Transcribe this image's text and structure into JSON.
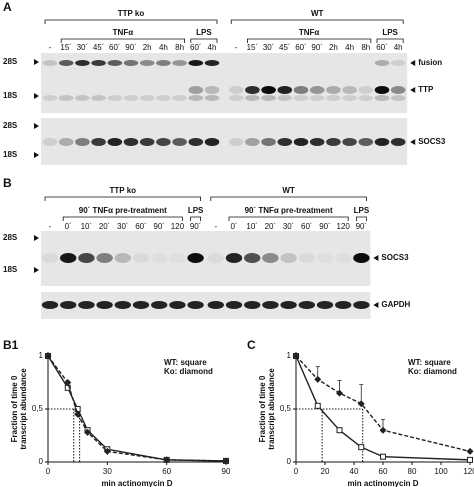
{
  "panel_a": {
    "label": "A",
    "groups": [
      {
        "name": "TTP ko",
        "lanes": [
          "-",
          "15´",
          "30´",
          "45´",
          "60´",
          "90´",
          "2h",
          "4h",
          "8h",
          "60´",
          "4h"
        ],
        "subgroups": [
          "TNFα",
          "LPS"
        ]
      },
      {
        "name": "WT",
        "lanes": [
          "-",
          "15´",
          "30´",
          "45´",
          "60´",
          "90´",
          "2h",
          "4h",
          "8h",
          "60´",
          "4h"
        ],
        "subgroups": [
          "TNFα",
          "LPS"
        ]
      }
    ],
    "markers": [
      "28S",
      "18S",
      "28S",
      "18S"
    ],
    "bands": [
      "fusion",
      "TTP",
      "SOCS3"
    ]
  },
  "panel_b": {
    "label": "B",
    "groups": [
      {
        "name": "TTP ko",
        "lanes": [
          "-",
          "0´",
          "10´",
          "20´",
          "30´",
          "60´",
          "90´",
          "120",
          "90´"
        ],
        "subgroups": [
          "90´ TNFα pre-treatment",
          "LPS"
        ]
      },
      {
        "name": "WT",
        "lanes": [
          "-",
          "0´",
          "10´",
          "20´",
          "30´",
          "60´",
          "90´",
          "120",
          "90´"
        ],
        "subgroups": [
          "90´ TNFα pre-treatment",
          "LPS"
        ]
      }
    ],
    "markers": [
      "28S",
      "18S"
    ],
    "bands": [
      "SOCS3",
      "GAPDH"
    ]
  },
  "chart_data": [
    {
      "type": "line",
      "title": "B1",
      "x_label": "min actinomycin D",
      "y_label": [
        "Fraction of time 0",
        "transcript abundance"
      ],
      "xlim": [
        0,
        90
      ],
      "xticks": [
        0,
        30,
        60,
        90
      ],
      "ylim": [
        0,
        1
      ],
      "yticks": [
        0,
        {
          "value": 0.5,
          "label": "0,5"
        },
        1
      ],
      "reference_lines": {
        "y": 0.5,
        "x": [
          13,
          16
        ]
      },
      "series": [
        {
          "name": "WT: square",
          "marker": "square",
          "dashed": false,
          "color": "#222222",
          "x": [
            0,
            10,
            15,
            20,
            30,
            60,
            90
          ],
          "values": [
            1,
            0.7,
            0.5,
            0.3,
            0.12,
            0.02,
            0.01
          ]
        },
        {
          "name": "Ko: diamond",
          "marker": "diamond",
          "dashed": true,
          "color": "#222222",
          "x": [
            0,
            10,
            15,
            20,
            30,
            60,
            90
          ],
          "values": [
            1,
            0.75,
            0.45,
            0.28,
            0.1,
            0.02,
            0.01
          ]
        }
      ]
    },
    {
      "type": "line",
      "title": "C",
      "x_label": "min actinomycin D",
      "y_label": [
        "Fraction of time 0",
        "transcript abundance"
      ],
      "xlim": [
        0,
        120
      ],
      "xticks": [
        0,
        20,
        40,
        60,
        80,
        100,
        120
      ],
      "ylim": [
        0,
        1
      ],
      "yticks": [
        0,
        {
          "value": 0.5,
          "label": "0,5"
        },
        1
      ],
      "reference_lines": {
        "y": 0.5,
        "x": [
          18,
          46
        ]
      },
      "series": [
        {
          "name": "WT: square",
          "marker": "square",
          "dashed": false,
          "color": "#222222",
          "x": [
            0,
            15,
            30,
            45,
            60,
            120
          ],
          "values": [
            1,
            0.53,
            0.3,
            0.14,
            0.05,
            0.02
          ]
        },
        {
          "name": "Ko: diamond",
          "marker": "diamond",
          "dashed": true,
          "color": "#222222",
          "x": [
            0,
            15,
            30,
            45,
            60,
            120
          ],
          "values": [
            1,
            0.78,
            0.65,
            0.55,
            0.3,
            0.1
          ],
          "errors": [
            0,
            0.12,
            0.12,
            0.18,
            0.1,
            0
          ]
        }
      ]
    }
  ]
}
